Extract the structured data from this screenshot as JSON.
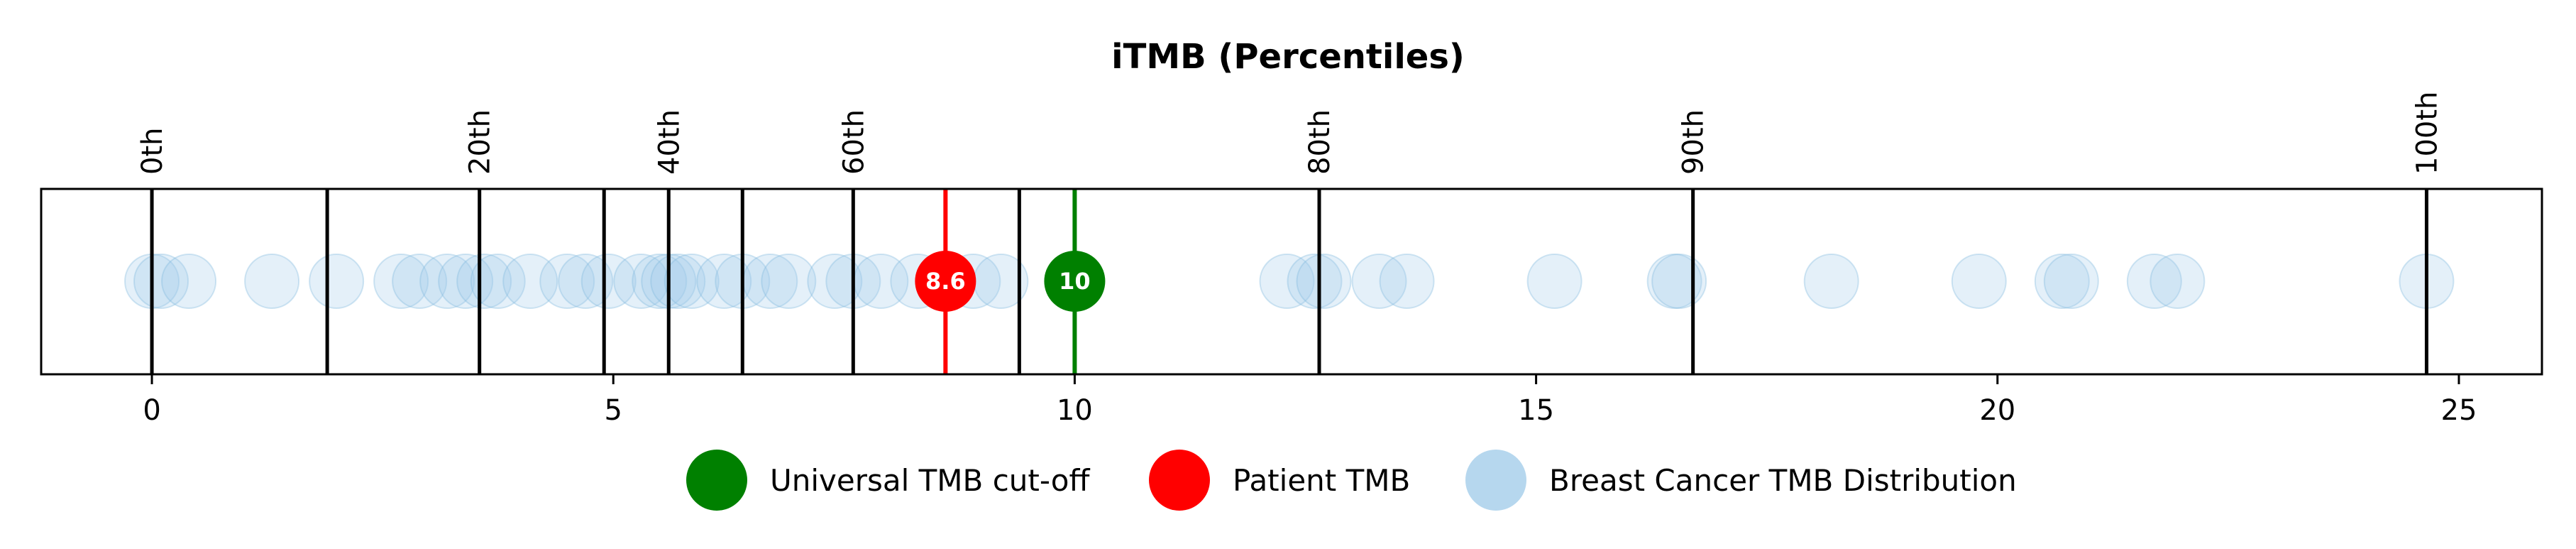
{
  "chart_data": {
    "type": "scatter",
    "title": "iTMB (Percentiles)",
    "xlim": [
      -1.2,
      25.9
    ],
    "xticks": [
      0,
      5,
      10,
      15,
      20,
      25
    ],
    "grid": false,
    "legend_position": "bottom-center",
    "percentile_lines": [
      {
        "x": 0.0,
        "label": "0th"
      },
      {
        "x": 1.9,
        "label": ""
      },
      {
        "x": 3.55,
        "label": "20th"
      },
      {
        "x": 4.9,
        "label": ""
      },
      {
        "x": 5.6,
        "label": "40th"
      },
      {
        "x": 6.4,
        "label": ""
      },
      {
        "x": 7.6,
        "label": "60th"
      },
      {
        "x": 9.4,
        "label": ""
      },
      {
        "x": 12.65,
        "label": "80th"
      },
      {
        "x": 16.7,
        "label": "90th"
      },
      {
        "x": 24.65,
        "label": "100th"
      }
    ],
    "distribution": [
      0.0,
      0.1,
      0.4,
      1.3,
      2.0,
      2.7,
      2.9,
      3.2,
      3.4,
      3.6,
      3.75,
      4.1,
      4.5,
      4.7,
      4.95,
      5.3,
      5.5,
      5.6,
      5.7,
      5.85,
      6.2,
      6.4,
      6.7,
      6.9,
      7.4,
      7.6,
      7.9,
      8.3,
      8.9,
      9.2,
      12.3,
      12.6,
      12.7,
      13.3,
      13.6,
      15.2,
      16.5,
      16.55,
      18.2,
      19.8,
      20.7,
      20.8,
      21.7,
      21.95,
      24.65
    ],
    "series": [
      {
        "name": "Universal TMB cut-off",
        "value": 10,
        "label": "10",
        "color": "#008000"
      },
      {
        "name": "Patient TMB",
        "value": 8.6,
        "label": "8.6",
        "color": "#ff0000"
      },
      {
        "name": "Breast Cancer TMB Distribution",
        "color": "#9ecae8"
      }
    ]
  }
}
